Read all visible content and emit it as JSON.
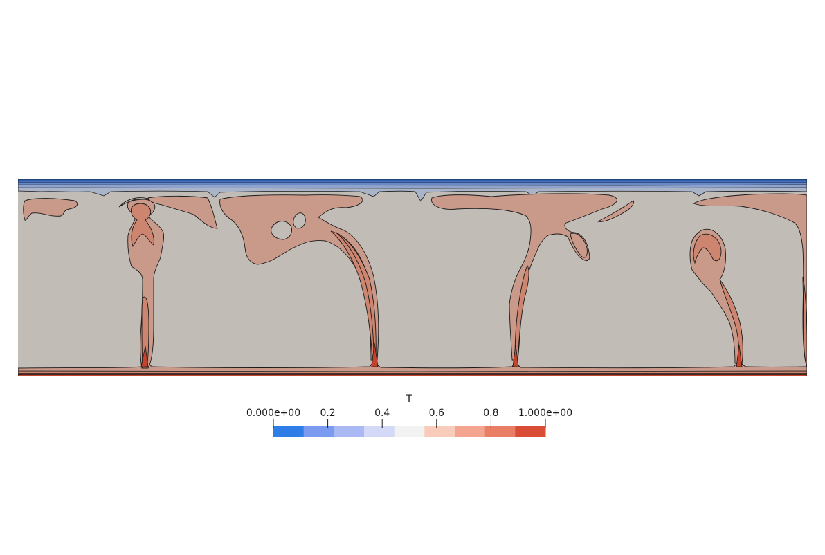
{
  "colorbar": {
    "title": "T",
    "range": [
      0,
      1
    ],
    "tick_values": [
      0,
      0.2,
      0.4,
      0.6,
      0.8,
      1.0
    ],
    "tick_labels": [
      "0.000e+00",
      "0.2",
      "0.4",
      "0.6",
      "0.8",
      "1.000e+00"
    ],
    "bands": [
      "#2f7ee8",
      "#7a9bf0",
      "#aab8f4",
      "#d3d9f6",
      "#f2f2f2",
      "#f8cbbb",
      "#f3a590",
      "#ea7d65",
      "#d94c36"
    ]
  },
  "field_colors": {
    "interior": "#c1bcb6",
    "plume": "#c9998a",
    "plume_inner": "#cd8570",
    "plume_core": "#c86a52",
    "bottom_boundary": "#c4432c",
    "top_boundary": [
      "#2c5fb0",
      "#4671bd",
      "#6a8ac7",
      "#8fa3cc",
      "#aab4c8"
    ],
    "contour_line": "#1a1a1a"
  }
}
